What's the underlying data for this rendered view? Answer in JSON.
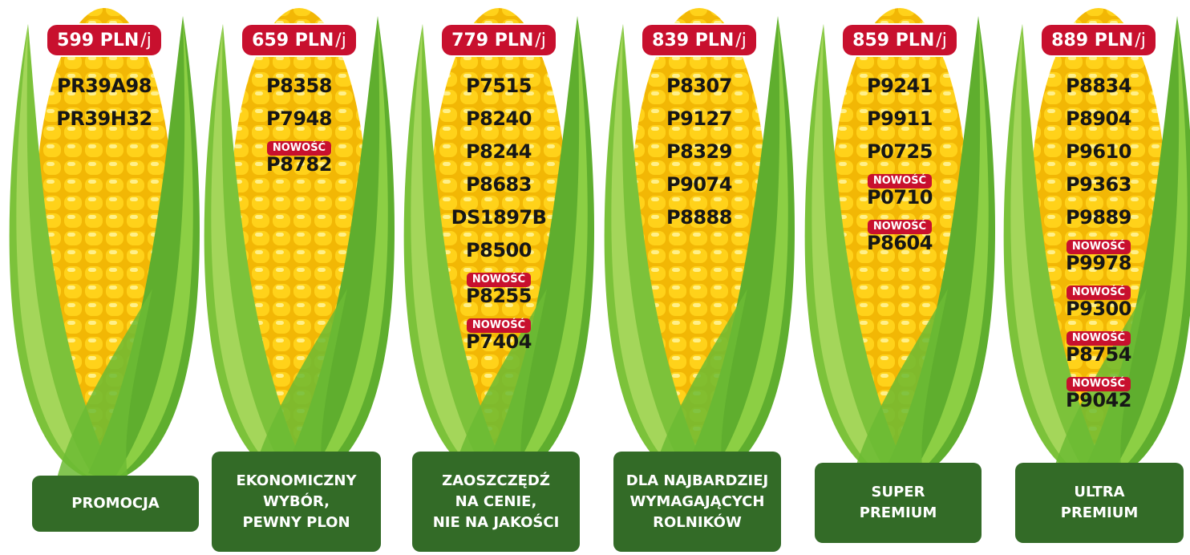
{
  "columns": [
    {
      "price": "599 PLN",
      "unit": "/j",
      "varieties": [
        {
          "name": "PR39A98"
        },
        {
          "name": "PR39H32"
        }
      ],
      "label": [
        "PROMOCJA"
      ]
    },
    {
      "price": "659 PLN",
      "unit": "/j",
      "varieties": [
        {
          "name": "P8358"
        },
        {
          "name": "P7948"
        },
        {
          "badge": "NOWOŚĆ",
          "name": "P8782"
        }
      ],
      "label": [
        "EKONOMICZNY",
        "WYBÓR,",
        "PEWNY PLON"
      ]
    },
    {
      "price": "779 PLN",
      "unit": "/j",
      "varieties": [
        {
          "name": "P7515"
        },
        {
          "name": "P8240"
        },
        {
          "name": "P8244"
        },
        {
          "name": "P8683"
        },
        {
          "name": "DS1897B"
        },
        {
          "name": "P8500"
        },
        {
          "badge": "NOWOŚĆ",
          "name": "P8255"
        },
        {
          "badge": "NOWOŚĆ",
          "name": "P7404"
        }
      ],
      "label": [
        "ZAOSZCZĘDŹ",
        "NA CENIE,",
        "NIE NA JAKOŚCI"
      ]
    },
    {
      "price": "839 PLN",
      "unit": "/j",
      "varieties": [
        {
          "name": "P8307"
        },
        {
          "name": "P9127"
        },
        {
          "name": "P8329"
        },
        {
          "name": "P9074"
        },
        {
          "name": "P8888"
        }
      ],
      "label": [
        "DLA NAJBARDZIEJ",
        "WYMAGAJĄCYCH",
        "ROLNIKÓW"
      ]
    },
    {
      "price": "859 PLN",
      "unit": "/j",
      "varieties": [
        {
          "name": "P9241"
        },
        {
          "name": "P9911"
        },
        {
          "name": "P0725"
        },
        {
          "badge": "NOWOŚĆ",
          "name": "P0710"
        },
        {
          "badge": "NOWOŚĆ",
          "name": "P8604"
        }
      ],
      "label": [
        "SUPER",
        "PREMIUM"
      ]
    },
    {
      "price": "889 PLN",
      "unit": "/j",
      "varieties": [
        {
          "name": "P8834"
        },
        {
          "name": "P8904"
        },
        {
          "name": "P9610"
        },
        {
          "name": "P9363"
        },
        {
          "name": "P9889"
        },
        {
          "badge": "NOWOŚĆ",
          "name": "P9978"
        },
        {
          "badge": "NOWOŚĆ",
          "name": "P9300"
        },
        {
          "badge": "NOWOŚĆ",
          "name": "P8754"
        },
        {
          "badge": "NOWOŚĆ",
          "name": "P9042"
        }
      ],
      "label": [
        "ULTRA",
        "PREMIUM"
      ]
    }
  ]
}
